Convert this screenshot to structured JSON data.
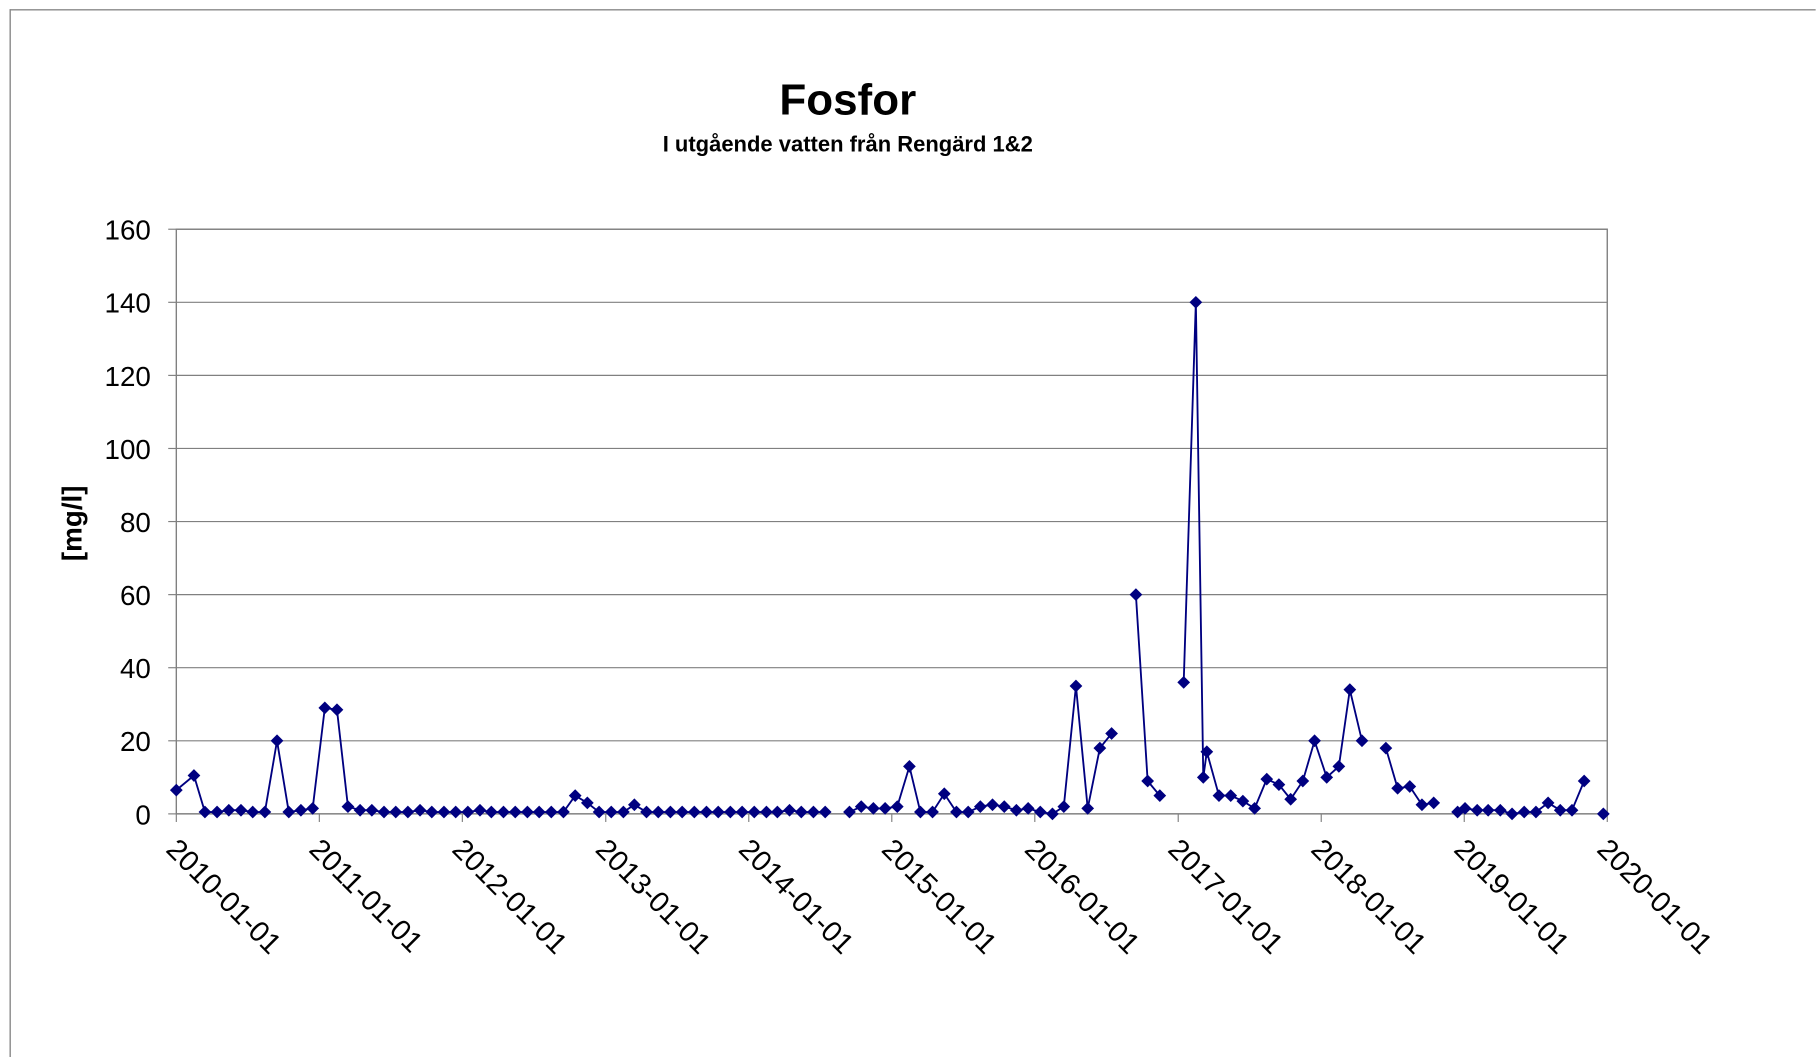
{
  "chart_data": {
    "type": "line",
    "title": "Fosfor",
    "subtitle": "I utgående vatten från Rengärd 1&2",
    "ylabel": "[mg/l]",
    "color": "#000080",
    "grid": true,
    "ylim": [
      0,
      160
    ],
    "yticks": [
      0,
      20,
      40,
      60,
      80,
      100,
      120,
      140,
      160
    ],
    "xlim": [
      "2010-01-01",
      "2020-01-01"
    ],
    "xticks": [
      "2010-01-01",
      "2011-01-01",
      "2012-01-01",
      "2013-01-01",
      "2014-01-01",
      "2015-01-01",
      "2016-01-01",
      "2017-01-01",
      "2018-01-01",
      "2019-01-01",
      "2020-01-01"
    ],
    "x": [
      "2010-01-01",
      "2010-02-15",
      "2010-03-15",
      "2010-04-15",
      "2010-05-15",
      "2010-06-15",
      "2010-07-15",
      "2010-08-15",
      "2010-09-15",
      "2010-10-15",
      "2010-11-15",
      "2010-12-15",
      "2011-01-15",
      "2011-02-15",
      "2011-03-15",
      "2011-04-15",
      "2011-05-15",
      "2011-06-15",
      "2011-07-15",
      "2011-08-15",
      "2011-09-15",
      "2011-10-15",
      "2011-11-15",
      "2011-12-15",
      "2012-01-15",
      "2012-02-15",
      "2012-03-15",
      "2012-04-15",
      "2012-05-15",
      "2012-06-15",
      "2012-07-15",
      "2012-08-15",
      "2012-09-15",
      "2012-10-15",
      "2012-11-15",
      "2012-12-15",
      "2013-01-15",
      "2013-02-15",
      "2013-03-15",
      "2013-04-15",
      "2013-05-15",
      "2013-06-15",
      "2013-07-15",
      "2013-08-15",
      "2013-09-15",
      "2013-10-15",
      "2013-11-15",
      "2013-12-15",
      "2014-01-15",
      "2014-02-15",
      "2014-03-15",
      "2014-04-15",
      "2014-05-15",
      "2014-06-15",
      "2014-07-15",
      "2014-08-15",
      "2014-09-15",
      "2014-10-15",
      "2014-11-15",
      "2014-12-15",
      "2015-01-15",
      "2015-02-15",
      "2015-03-15",
      "2015-04-15",
      "2015-05-15",
      "2015-06-15",
      "2015-07-15",
      "2015-08-15",
      "2015-09-15",
      "2015-10-15",
      "2015-11-15",
      "2015-12-15",
      "2016-01-15",
      "2016-02-15",
      "2016-03-15",
      "2016-04-15",
      "2016-05-15",
      "2016-06-15",
      "2016-07-15",
      "2016-08-15",
      "2016-09-15",
      "2016-10-15",
      "2016-11-15",
      "2016-12-15",
      "2017-01-15",
      "2017-02-15",
      "2017-03-06",
      "2017-03-15",
      "2017-04-15",
      "2017-05-15",
      "2017-06-15",
      "2017-07-15",
      "2017-08-15",
      "2017-09-15",
      "2017-10-15",
      "2017-11-15",
      "2017-12-15",
      "2018-01-15",
      "2018-02-15",
      "2018-03-15",
      "2018-04-15",
      "2018-05-15",
      "2018-06-15",
      "2018-07-15",
      "2018-08-15",
      "2018-09-15",
      "2018-10-15",
      "2018-11-15",
      "2018-12-15",
      "2019-01-03",
      "2019-02-03",
      "2019-03-03",
      "2019-04-03",
      "2019-05-03",
      "2019-06-03",
      "2019-07-03",
      "2019-08-03",
      "2019-09-03",
      "2019-10-03",
      "2019-11-03",
      "2019-12-01",
      "2019-12-22"
    ],
    "values": [
      6.5,
      10.5,
      0.5,
      0.5,
      1,
      1,
      0.5,
      0.5,
      20,
      0.5,
      1,
      1.5,
      29,
      28.5,
      2,
      1,
      1,
      0.5,
      0.5,
      0.5,
      1,
      0.5,
      0.5,
      0.5,
      0.5,
      1,
      0.5,
      0.5,
      0.5,
      0.5,
      0.5,
      0.5,
      0.5,
      5,
      3,
      0.5,
      0.5,
      0.5,
      2.5,
      0.5,
      0.5,
      0.5,
      0.5,
      0.5,
      0.5,
      0.5,
      0.5,
      0.5,
      0.5,
      0.5,
      0.5,
      1,
      0.5,
      0.5,
      0.5,
      null,
      0.5,
      2,
      1.5,
      1.5,
      2,
      13,
      0.5,
      0.5,
      5.5,
      0.5,
      0.5,
      2,
      2.5,
      2,
      1,
      1.5,
      0.5,
      0,
      2,
      35,
      1.5,
      18,
      22,
      null,
      60,
      9,
      5,
      null,
      36,
      140,
      10,
      17,
      5,
      5,
      3.5,
      1.5,
      9.5,
      8,
      4,
      9,
      20,
      10,
      13,
      34,
      20,
      null,
      18,
      7,
      7.5,
      2.5,
      3,
      null,
      0.5,
      1.5,
      1,
      1,
      1,
      0,
      0.5,
      0.5,
      3,
      1,
      1,
      9,
      null,
      0
    ]
  }
}
